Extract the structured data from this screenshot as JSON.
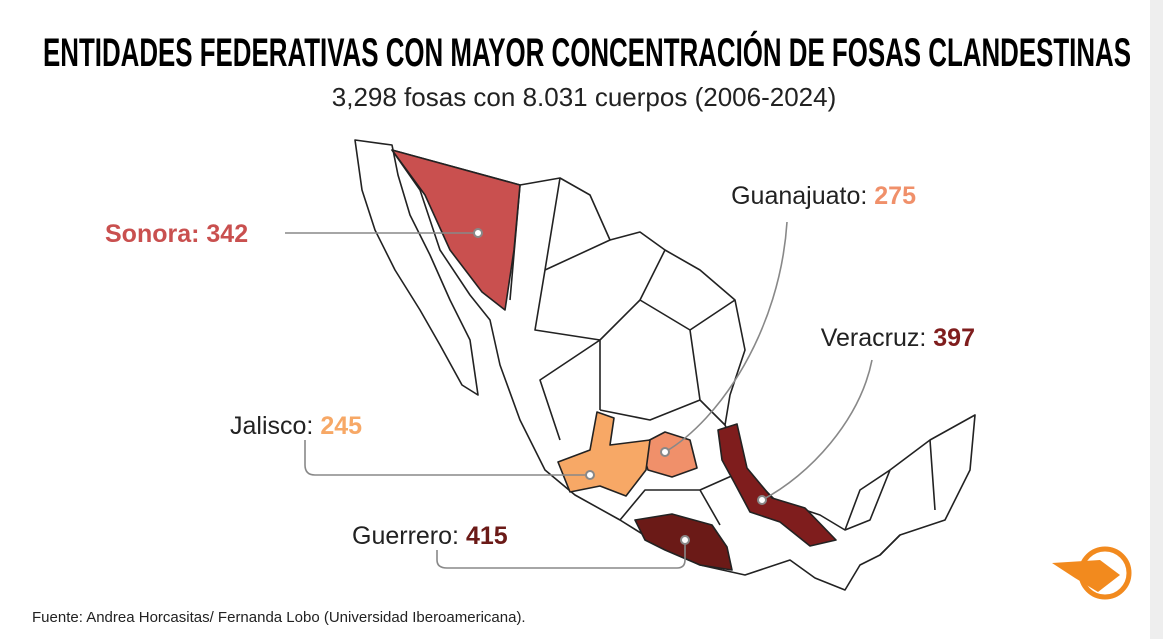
{
  "title": "ENTIDADES FEDERATIVAS CON MAYOR CONCENTRACIÓN DE FOSAS CLANDESTINAS",
  "subtitle": "3,298 fosas con 8.031 cuerpos (2006-2024)",
  "states": [
    {
      "name": "Sonora:",
      "value": 342,
      "color": "#c9504f"
    },
    {
      "name": "Guanajuato:",
      "value": 275,
      "color": "#f0906a"
    },
    {
      "name": "Veracruz:",
      "value": 397,
      "color": "#7f1d1d"
    },
    {
      "name": "Jalisco:",
      "value": 245,
      "color": "#f7a866"
    },
    {
      "name": "Guerrero:",
      "value": 415,
      "color": "#6b1a17"
    }
  ],
  "source": "Fuente: Andrea Horcasitas/ Fernanda Lobo (Universidad Iberoamericana)."
}
